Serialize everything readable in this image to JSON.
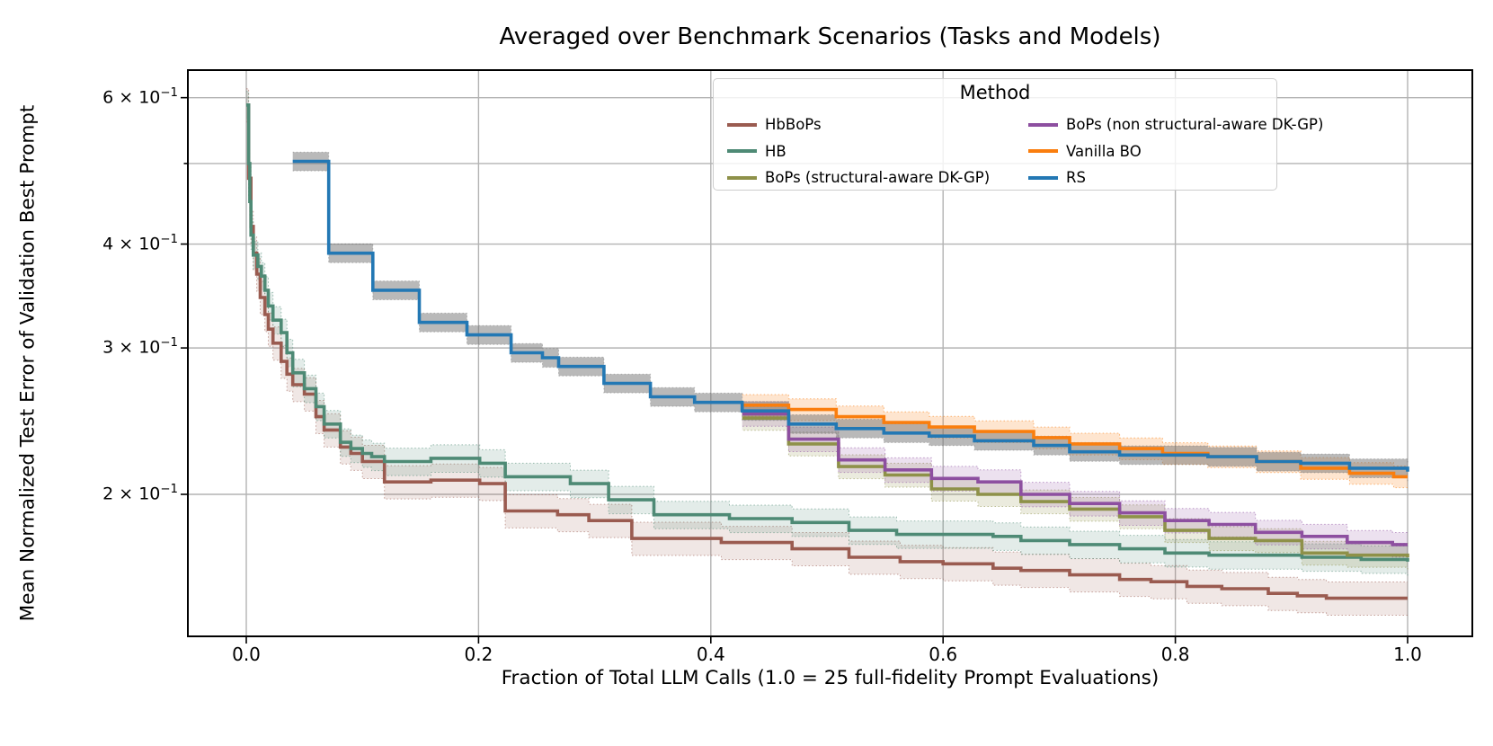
{
  "title": "Averaged over Benchmark Scenarios (Tasks and Models)",
  "xlabel": "Fraction of Total LLM Calls (1.0 = 25 full-fidelity Prompt Evaluations)",
  "ylabel": "Mean Normalized Test Error of Validation Best Prompt",
  "legend": {
    "title": "Method",
    "columns": [
      [
        {
          "label": "HbBoPs",
          "color": "#9a5b50"
        },
        {
          "label": "HB",
          "color": "#4e8a75"
        },
        {
          "label": "BoPs (structural-aware DK-GP)",
          "color": "#8e9149"
        }
      ],
      [
        {
          "label": "BoPs (non structural-aware DK-GP)",
          "color": "#8d4fa0"
        },
        {
          "label": "Vanilla BO",
          "color": "#fa7e0e"
        },
        {
          "label": "RS",
          "color": "#2378b4"
        }
      ]
    ]
  },
  "axes": {
    "x_ticks": [
      {
        "value": 0.0,
        "label": "0.0"
      },
      {
        "value": 0.2,
        "label": "0.2"
      },
      {
        "value": 0.4,
        "label": "0.4"
      },
      {
        "value": 0.6,
        "label": "0.6"
      },
      {
        "value": 0.8,
        "label": "0.8"
      },
      {
        "value": 1.0,
        "label": "1.0"
      }
    ],
    "y_ticks": [
      {
        "value": 0.6,
        "labeled": true,
        "label_base": "6 × 10",
        "label_exp": "−1"
      },
      {
        "value": 0.5,
        "labeled": false,
        "label_base": "",
        "label_exp": ""
      },
      {
        "value": 0.4,
        "labeled": true,
        "label_base": "4 × 10",
        "label_exp": "−1"
      },
      {
        "value": 0.3,
        "labeled": true,
        "label_base": "3 × 10",
        "label_exp": "−1"
      },
      {
        "value": 0.2,
        "labeled": true,
        "label_base": "2 × 10",
        "label_exp": "−1"
      }
    ]
  },
  "chart_data": {
    "type": "line",
    "title": "Averaged over Benchmark Scenarios (Tasks and Models)",
    "xlabel": "Fraction of Total LLM Calls (1.0 = 25 full-fidelity Prompt Evaluations)",
    "ylabel": "Mean Normalized Test Error of Validation Best Prompt",
    "x_range": [
      -0.05,
      1.055
    ],
    "y_range_log": [
      0.135,
      0.648
    ],
    "y_scale": "log",
    "grid": true,
    "gridlines_y": [
      0.6,
      0.5,
      0.4,
      0.3,
      0.2
    ],
    "gridlines_x": [
      0.0,
      0.2,
      0.4,
      0.6,
      0.8,
      1.0
    ],
    "legend_position": "upper right",
    "step_mode": "post",
    "series": [
      {
        "name": "HbBoPs",
        "color": "#9a5b50",
        "band_color": "rgba(154,91,80,0.15)",
        "band_frac": 0.046,
        "points": [
          [
            0.0,
            0.588
          ],
          [
            0.002,
            0.48
          ],
          [
            0.004,
            0.42
          ],
          [
            0.006,
            0.39
          ],
          [
            0.009,
            0.368
          ],
          [
            0.012,
            0.345
          ],
          [
            0.016,
            0.329
          ],
          [
            0.019,
            0.316
          ],
          [
            0.023,
            0.304
          ],
          [
            0.03,
            0.289
          ],
          [
            0.035,
            0.279
          ],
          [
            0.04,
            0.271
          ],
          [
            0.05,
            0.264
          ],
          [
            0.06,
            0.248
          ],
          [
            0.067,
            0.239
          ],
          [
            0.081,
            0.228
          ],
          [
            0.09,
            0.224
          ],
          [
            0.1,
            0.219
          ],
          [
            0.119,
            0.207
          ],
          [
            0.159,
            0.208
          ],
          [
            0.201,
            0.206
          ],
          [
            0.223,
            0.191
          ],
          [
            0.268,
            0.189
          ],
          [
            0.295,
            0.186
          ],
          [
            0.332,
            0.177
          ],
          [
            0.409,
            0.175
          ],
          [
            0.47,
            0.172
          ],
          [
            0.519,
            0.168
          ],
          [
            0.563,
            0.166
          ],
          [
            0.6,
            0.165
          ],
          [
            0.643,
            0.163
          ],
          [
            0.667,
            0.162
          ],
          [
            0.709,
            0.16
          ],
          [
            0.752,
            0.158
          ],
          [
            0.779,
            0.157
          ],
          [
            0.81,
            0.155
          ],
          [
            0.84,
            0.154
          ],
          [
            0.88,
            0.152
          ],
          [
            0.905,
            0.151
          ],
          [
            0.93,
            0.15
          ],
          [
            1.0,
            0.15
          ]
        ]
      },
      {
        "name": "HB",
        "color": "#4e8a75",
        "band_color": "rgba(78,138,117,0.16)",
        "band_frac": 0.038,
        "points": [
          [
            0.0,
            0.588
          ],
          [
            0.002,
            0.5
          ],
          [
            0.003,
            0.45
          ],
          [
            0.004,
            0.41
          ],
          [
            0.006,
            0.388
          ],
          [
            0.01,
            0.376
          ],
          [
            0.013,
            0.366
          ],
          [
            0.016,
            0.352
          ],
          [
            0.019,
            0.337
          ],
          [
            0.023,
            0.324
          ],
          [
            0.03,
            0.313
          ],
          [
            0.035,
            0.296
          ],
          [
            0.04,
            0.28
          ],
          [
            0.05,
            0.268
          ],
          [
            0.06,
            0.255
          ],
          [
            0.067,
            0.243
          ],
          [
            0.081,
            0.231
          ],
          [
            0.09,
            0.227
          ],
          [
            0.1,
            0.224
          ],
          [
            0.108,
            0.222
          ],
          [
            0.119,
            0.219
          ],
          [
            0.159,
            0.221
          ],
          [
            0.201,
            0.218
          ],
          [
            0.223,
            0.21
          ],
          [
            0.256,
            0.21
          ],
          [
            0.279,
            0.206
          ],
          [
            0.312,
            0.197
          ],
          [
            0.351,
            0.189
          ],
          [
            0.416,
            0.187
          ],
          [
            0.47,
            0.185
          ],
          [
            0.519,
            0.181
          ],
          [
            0.56,
            0.179
          ],
          [
            0.643,
            0.178
          ],
          [
            0.667,
            0.176
          ],
          [
            0.709,
            0.174
          ],
          [
            0.752,
            0.172
          ],
          [
            0.791,
            0.17
          ],
          [
            0.829,
            0.169
          ],
          [
            0.909,
            0.168
          ],
          [
            0.96,
            0.167
          ],
          [
            1.0,
            0.166
          ]
        ]
      },
      {
        "name": "BoPs (structural-aware DK-GP)",
        "color": "#8e9149",
        "band_color": "rgba(142,145,73,0.18)",
        "band_frac": 0.033,
        "points": [
          [
            0.427,
            0.247
          ],
          [
            0.467,
            0.23
          ],
          [
            0.51,
            0.216
          ],
          [
            0.55,
            0.211
          ],
          [
            0.59,
            0.203
          ],
          [
            0.63,
            0.2
          ],
          [
            0.667,
            0.196
          ],
          [
            0.709,
            0.192
          ],
          [
            0.752,
            0.188
          ],
          [
            0.791,
            0.181
          ],
          [
            0.829,
            0.177
          ],
          [
            0.869,
            0.176
          ],
          [
            0.909,
            0.17
          ],
          [
            0.948,
            0.169
          ],
          [
            1.0,
            0.168
          ]
        ]
      },
      {
        "name": "BoPs (non structural-aware DK-GP)",
        "color": "#8d4fa0",
        "band_color": "rgba(141,79,160,0.17)",
        "band_frac": 0.034,
        "points": [
          [
            0.427,
            0.25
          ],
          [
            0.467,
            0.233
          ],
          [
            0.51,
            0.22
          ],
          [
            0.55,
            0.214
          ],
          [
            0.59,
            0.209
          ],
          [
            0.63,
            0.207
          ],
          [
            0.667,
            0.2
          ],
          [
            0.709,
            0.195
          ],
          [
            0.752,
            0.19
          ],
          [
            0.791,
            0.186
          ],
          [
            0.829,
            0.184
          ],
          [
            0.869,
            0.18
          ],
          [
            0.909,
            0.178
          ],
          [
            0.948,
            0.175
          ],
          [
            0.987,
            0.174
          ],
          [
            1.0,
            0.174
          ]
        ]
      },
      {
        "name": "Vanilla BO",
        "color": "#fa7e0e",
        "band_color": "rgba(250,126,14,0.2)",
        "band_frac": 0.03,
        "points": [
          [
            0.427,
            0.256
          ],
          [
            0.467,
            0.253
          ],
          [
            0.508,
            0.248
          ],
          [
            0.549,
            0.244
          ],
          [
            0.588,
            0.241
          ],
          [
            0.627,
            0.238
          ],
          [
            0.678,
            0.234
          ],
          [
            0.709,
            0.23
          ],
          [
            0.752,
            0.227
          ],
          [
            0.789,
            0.224
          ],
          [
            0.828,
            0.222
          ],
          [
            0.87,
            0.219
          ],
          [
            0.908,
            0.215
          ],
          [
            0.95,
            0.212
          ],
          [
            0.988,
            0.21
          ],
          [
            1.0,
            0.21
          ]
        ]
      },
      {
        "name": "RS",
        "color": "#2378b4",
        "band_color": "rgba(115,115,115,0.5)",
        "band_frac": 0.026,
        "points": [
          [
            0.04,
            0.503
          ],
          [
            0.071,
            0.39
          ],
          [
            0.109,
            0.352
          ],
          [
            0.149,
            0.322
          ],
          [
            0.19,
            0.311
          ],
          [
            0.228,
            0.296
          ],
          [
            0.255,
            0.292
          ],
          [
            0.269,
            0.285
          ],
          [
            0.308,
            0.272
          ],
          [
            0.348,
            0.262
          ],
          [
            0.386,
            0.258
          ],
          [
            0.427,
            0.252
          ],
          [
            0.467,
            0.243
          ],
          [
            0.508,
            0.24
          ],
          [
            0.549,
            0.237
          ],
          [
            0.588,
            0.235
          ],
          [
            0.627,
            0.232
          ],
          [
            0.678,
            0.229
          ],
          [
            0.709,
            0.225
          ],
          [
            0.752,
            0.223
          ],
          [
            0.828,
            0.222
          ],
          [
            0.87,
            0.219
          ],
          [
            0.908,
            0.218
          ],
          [
            0.95,
            0.215
          ],
          [
            1.0,
            0.213
          ]
        ]
      }
    ]
  }
}
